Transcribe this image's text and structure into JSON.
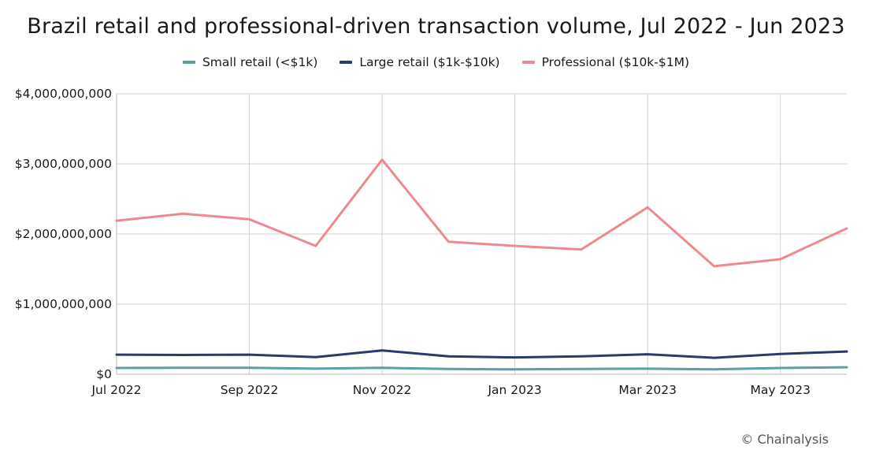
{
  "title": "Brazil retail and professional-driven transaction volume, Jul 2022 - Jun 2023",
  "credit": "© Chainalysis",
  "chart_data": {
    "type": "line",
    "title": "Brazil retail and professional-driven transaction volume, Jul 2022 - Jun 2023",
    "xlabel": "",
    "ylabel": "",
    "x": [
      "2022-07",
      "2022-08",
      "2022-09",
      "2022-10",
      "2022-11",
      "2022-12",
      "2023-01",
      "2023-02",
      "2023-03",
      "2023-04",
      "2023-05",
      "2023-06"
    ],
    "x_tick_labels": [
      {
        "x": "2022-07",
        "label": "Jul 2022"
      },
      {
        "x": "2022-09",
        "label": "Sep 2022"
      },
      {
        "x": "2022-11",
        "label": "Nov 2022"
      },
      {
        "x": "2023-01",
        "label": "Jan 2023"
      },
      {
        "x": "2023-03",
        "label": "Mar 2023"
      },
      {
        "x": "2023-05",
        "label": "May 2023"
      }
    ],
    "y_ticks": [
      {
        "value": 0,
        "label": "$0"
      },
      {
        "value": 1000000000,
        "label": "$1,000,000,000"
      },
      {
        "value": 2000000000,
        "label": "$2,000,000,000"
      },
      {
        "value": 3000000000,
        "label": "$3,000,000,000"
      },
      {
        "value": 4000000000,
        "label": "$4,000,000,000"
      }
    ],
    "ylim": [
      0,
      4000000000
    ],
    "grid": true,
    "legend_position": "top-center",
    "series": [
      {
        "name": "Small retail (<$1k)",
        "color": "#5b9ea6",
        "values": [
          90000000,
          92000000,
          92000000,
          80000000,
          92000000,
          75000000,
          70000000,
          75000000,
          80000000,
          70000000,
          90000000,
          100000000
        ]
      },
      {
        "name": "Large retail ($1k-$10k)",
        "color": "#2b3a6b",
        "values": [
          280000000,
          275000000,
          280000000,
          245000000,
          340000000,
          255000000,
          240000000,
          255000000,
          285000000,
          235000000,
          290000000,
          325000000
        ]
      },
      {
        "name": "Professional ($10k-$1M)",
        "color": "#ee8a8f",
        "values": [
          2190000000,
          2290000000,
          2210000000,
          1830000000,
          3060000000,
          1890000000,
          1830000000,
          1780000000,
          2380000000,
          1540000000,
          1640000000,
          2080000000
        ]
      }
    ]
  }
}
